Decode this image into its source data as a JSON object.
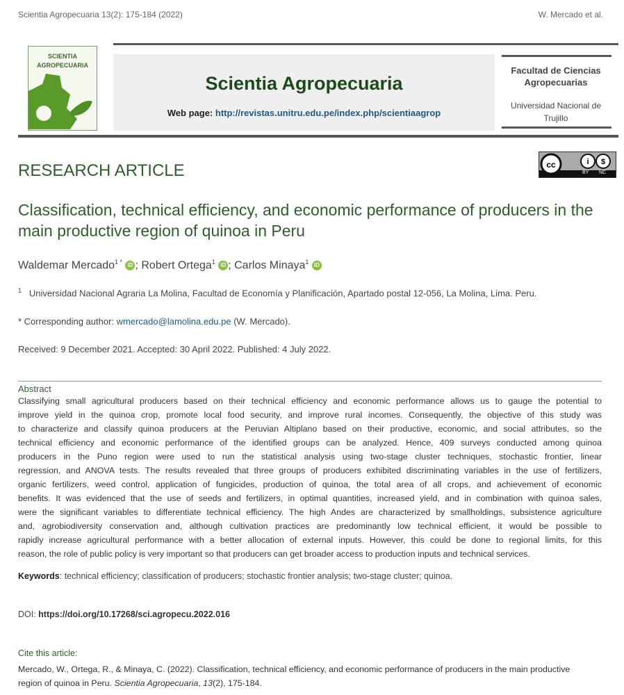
{
  "running_header": {
    "left": "Scientia Agropecuaria 13(2): 175-184 (2022)",
    "right": "W. Mercado et al."
  },
  "logo": {
    "text_line1": "SCIENTIA",
    "text_line2": "AGROPECUARIA"
  },
  "banner": {
    "journal_title": "Scientia Agropecuaria",
    "webpage_label": "Web page:",
    "webpage_url": "http://revistas.unitru.edu.pe/index.php/scientiaagrop",
    "faculty": "Facultad de Ciencias Agropecuarias",
    "university": "Universidad Nacional de Trujillo"
  },
  "license": {
    "badge": "CC BY NC",
    "by": "BY",
    "nc": "NC"
  },
  "article_type": "RESEARCH ARTICLE",
  "title": "Classification, technical efficiency, and economic performance of producers in the main productive region of quinoa in Peru",
  "authors": [
    {
      "name": "Waldemar Mercado",
      "sup": "1 *",
      "sep": "; "
    },
    {
      "name": "Robert Ortega",
      "sup": "1",
      "sep": "; "
    },
    {
      "name": "Carlos Minaya",
      "sup": "1",
      "sep": ""
    }
  ],
  "orcid_label": "iD",
  "affiliation": {
    "sup": "1",
    "text": "Universidad Nacional Agraria La Molina, Facultad de Economía y Planificación, Apartado postal 12-056, La Molina, Lima. Peru."
  },
  "corresponding": {
    "label": "* Corresponding author: ",
    "email": "wmercado@lamolina.edu.pe",
    "suffix": " (W. Mercado)."
  },
  "dates": "Received: 9 December 2021. Accepted: 30 April 2022. Published: 4 July 2022.",
  "abstract": {
    "heading": "Abstract",
    "lines": [
      "Classifying small agricultural producers based on their technical efficiency and economic performance allows us to gauge the potential to",
      "improve yield in the quinoa crop, promote local food security, and improve rural incomes. Consequently, the objective of this study was",
      "to characterize and classify quinoa producers at the Peruvian Altiplano based on their productive, economic, and social attributes, so the",
      "technical efficiency and economic performance of the identified groups can be analyzed. Hence, 409 surveys conducted among quinoa",
      "producers in the Puno region were used to run the statistical analysis using two-stage cluster techniques, stochastic frontier, linear",
      "regression, and ANOVA tests. The results revealed that three groups of producers exhibited discriminating variables in the use of fertilizers,",
      "organic fertilizers, weed control, application of fungicides, production of quinoa, the total area of all crops, and achievement of economic",
      "benefits. It was evidenced that the use of seeds and fertilizers, in optimal quantities, increased yield, and in combination with quinoa sales,",
      "were the significant variables to differentiate technical efficiency. The high Andes are characterized by smallholdings, subsistence agriculture",
      "and, agrobiodiversity conservation and, although cultivation practices are predominantly low technical efficient, it would be possible to",
      "rapidly increase agricultural performance with a better allocation of external inputs. However, this could be done to regional limits, for this",
      "reason, the role of public policy is very important so that producers can get broader access to production inputs and technical services."
    ]
  },
  "keywords": {
    "label": "Keywords",
    "text": ": technical efficiency; classification of producers; stochastic frontier analysis; two-stage cluster; quinoa."
  },
  "doi": {
    "label": "DOI: ",
    "url": "https://doi.org/10.17268/sci.agropecu.2022.016"
  },
  "cite": {
    "heading": "Cite this article:",
    "part1": "Mercado, W., Ortega, R., & Minaya, C. (2022). Classification, technical efficiency, and economic performance of producers in the main productive region of quinoa in Peru. ",
    "journal": "Scientia Agropecuaria",
    "part2": ", ",
    "volume": "13",
    "part3": "(2), 175-184."
  }
}
